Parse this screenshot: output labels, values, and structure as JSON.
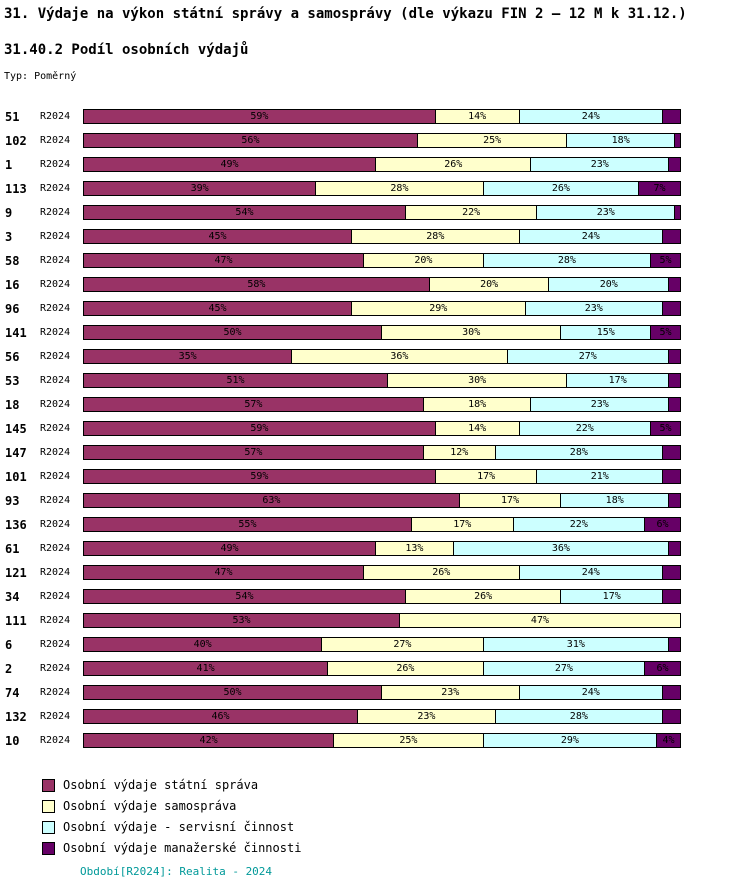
{
  "title": "31. Výdaje na výkon státní správy a samosprávy (dle výkazu FIN 2 – 12 M k 31.12.)",
  "subtitle": "31.40.2 Podíl osobních výdajů",
  "type_label": "Typ: Poměrný",
  "period_label": "R2024",
  "footer": "Období[R2024]: Realita - 2024",
  "label_min_percent": 4,
  "colors": {
    "state_admin": "#993366",
    "self_gov": "#FFFFCC",
    "service": "#CCFFFF",
    "managerial": "#660066",
    "footer_text": "#009999",
    "segment_border": "#000000"
  },
  "legend": [
    {
      "label": "Osobní výdaje státní správa",
      "color": "#993366"
    },
    {
      "label": "Osobní výdaje samospráva",
      "color": "#FFFFCC"
    },
    {
      "label": "Osobní výdaje - servisní činnost",
      "color": "#CCFFFF"
    },
    {
      "label": "Osobní výdaje manažerské činnosti",
      "color": "#660066"
    }
  ],
  "chart_data": {
    "type": "bar",
    "orientation": "horizontal",
    "stacked": true,
    "unit": "%",
    "xlim": [
      0,
      100
    ],
    "row_period": "R2024",
    "categories": [
      "51",
      "102",
      "1",
      "113",
      "9",
      "3",
      "58",
      "16",
      "96",
      "141",
      "56",
      "53",
      "18",
      "145",
      "147",
      "101",
      "93",
      "136",
      "61",
      "121",
      "34",
      "111",
      "6",
      "2",
      "74",
      "132",
      "10"
    ],
    "series": [
      {
        "name": "Osobní výdaje státní správa",
        "values": [
          59,
          56,
          49,
          39,
          54,
          45,
          47,
          58,
          45,
          50,
          35,
          51,
          57,
          59,
          57,
          59,
          63,
          55,
          49,
          47,
          54,
          53,
          40,
          41,
          50,
          46,
          42
        ]
      },
      {
        "name": "Osobní výdaje samospráva",
        "values": [
          14,
          25,
          26,
          28,
          22,
          28,
          20,
          20,
          29,
          30,
          36,
          30,
          18,
          14,
          12,
          17,
          17,
          17,
          13,
          26,
          26,
          47,
          27,
          26,
          23,
          23,
          25
        ]
      },
      {
        "name": "Osobní výdaje - servisní činnost",
        "values": [
          24,
          18,
          23,
          26,
          23,
          24,
          28,
          20,
          23,
          15,
          27,
          17,
          23,
          22,
          28,
          21,
          18,
          22,
          36,
          24,
          17,
          0,
          31,
          27,
          24,
          28,
          29
        ]
      },
      {
        "name": "Osobní výdaje manažerské činnosti",
        "values": [
          3,
          1,
          2,
          7,
          1,
          3,
          5,
          2,
          3,
          5,
          2,
          2,
          2,
          5,
          3,
          3,
          2,
          6,
          2,
          3,
          3,
          0,
          2,
          6,
          3,
          3,
          4
        ]
      }
    ]
  }
}
